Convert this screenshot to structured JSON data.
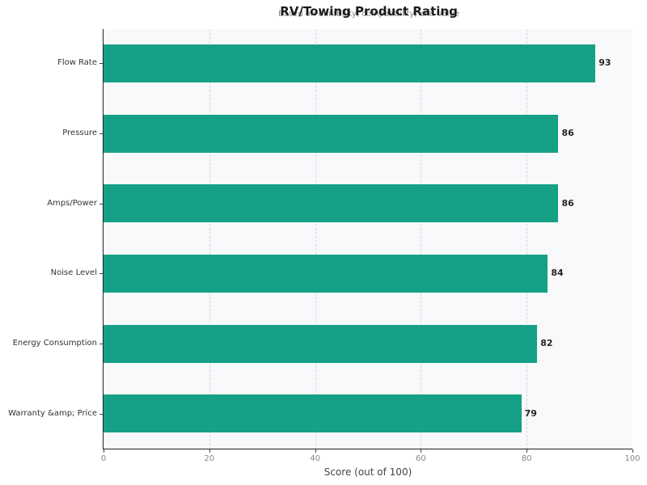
{
  "chart_data": {
    "type": "bar",
    "orientation": "horizontal",
    "title": "RV/Towing Product Rating",
    "subtitle": "Based on durability, compatibility, and value",
    "categories": [
      "Flow Rate",
      "Pressure",
      "Amps/Power",
      "Noise Level",
      "Energy Consumption",
      "Warranty &amp; Price"
    ],
    "values": [
      93,
      86,
      86,
      84,
      82,
      79
    ],
    "xlabel": "Score (out of 100)",
    "ylabel": "",
    "xlim": [
      0,
      100
    ],
    "xticks": [
      "0",
      "20",
      "40",
      "60",
      "80",
      "100"
    ],
    "grid": "vertical dashed",
    "bar_color": "#16a085",
    "legend": null
  }
}
